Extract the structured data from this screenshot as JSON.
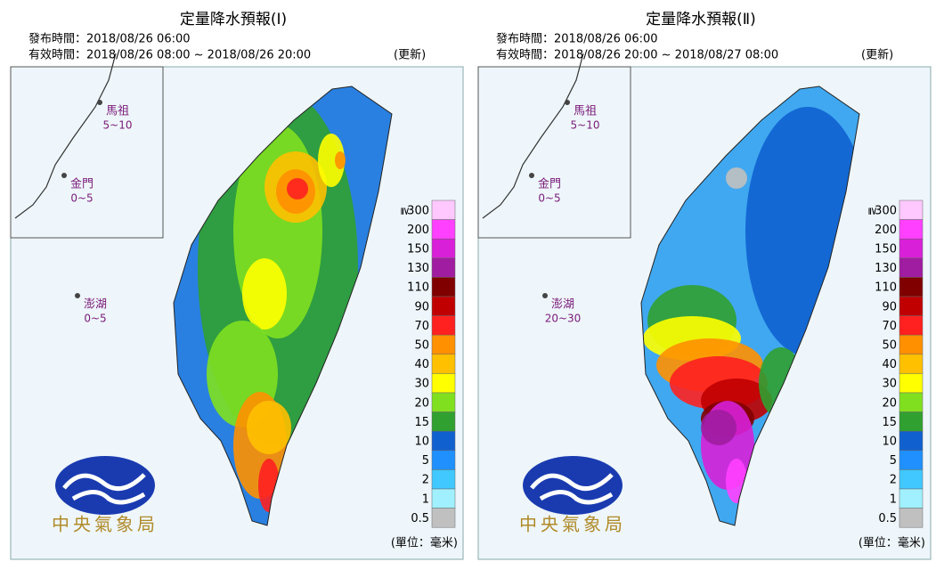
{
  "panels": [
    {
      "title": "定量降水預報(Ⅰ)",
      "issued": "發布時間：2018/08/26 06:00",
      "valid": "有效時間：2018/08/26 08:00 ~ 2018/08/26 20:00",
      "update": "(更新)",
      "islands": [
        {
          "name": "馬祖",
          "range": "5~10"
        },
        {
          "name": "金門",
          "range": "0~5"
        },
        {
          "name": "澎湖",
          "range": "0~5"
        }
      ],
      "legend_prefix": "≧",
      "legend": [
        {
          "label": "300",
          "color": "#ffc8ff"
        },
        {
          "label": "200",
          "color": "#ff40ff"
        },
        {
          "label": "150",
          "color": "#d820d8"
        },
        {
          "label": "130",
          "color": "#a01ca0"
        },
        {
          "label": "110",
          "color": "#800000"
        },
        {
          "label": "90",
          "color": "#c00000"
        },
        {
          "label": "70",
          "color": "#ff2020"
        },
        {
          "label": "50",
          "color": "#ff9000"
        },
        {
          "label": "40",
          "color": "#ffc000"
        },
        {
          "label": "30",
          "color": "#ffff00"
        },
        {
          "label": "20",
          "color": "#80e020"
        },
        {
          "label": "15",
          "color": "#30a030"
        },
        {
          "label": "10",
          "color": "#1060d0"
        },
        {
          "label": "5",
          "color": "#2090ff"
        },
        {
          "label": "2",
          "color": "#40c8ff"
        },
        {
          "label": "1",
          "color": "#a0f0ff"
        },
        {
          "label": "0.5",
          "color": "#c0c0c0"
        }
      ],
      "unit": "(單位：毫米)",
      "agency": "中央氣象局"
    },
    {
      "title": "定量降水預報(Ⅱ)",
      "issued": "發布時間：2018/08/26 06:00",
      "valid": "有效時間：2018/08/26 20:00 ~ 2018/08/27 08:00",
      "update": "(更新)",
      "islands": [
        {
          "name": "馬祖",
          "range": "5~10"
        },
        {
          "name": "金門",
          "range": "0~5"
        },
        {
          "name": "澎湖",
          "range": "20~30"
        }
      ],
      "legend_prefix": "≧",
      "legend": [
        {
          "label": "300",
          "color": "#ffc8ff"
        },
        {
          "label": "200",
          "color": "#ff40ff"
        },
        {
          "label": "150",
          "color": "#d820d8"
        },
        {
          "label": "130",
          "color": "#a01ca0"
        },
        {
          "label": "110",
          "color": "#800000"
        },
        {
          "label": "90",
          "color": "#c00000"
        },
        {
          "label": "70",
          "color": "#ff2020"
        },
        {
          "label": "50",
          "color": "#ff9000"
        },
        {
          "label": "40",
          "color": "#ffc000"
        },
        {
          "label": "30",
          "color": "#ffff00"
        },
        {
          "label": "20",
          "color": "#80e020"
        },
        {
          "label": "15",
          "color": "#30a030"
        },
        {
          "label": "10",
          "color": "#1060d0"
        },
        {
          "label": "5",
          "color": "#2090ff"
        },
        {
          "label": "2",
          "color": "#40c8ff"
        },
        {
          "label": "1",
          "color": "#a0f0ff"
        },
        {
          "label": "0.5",
          "color": "#c0c0c0"
        }
      ],
      "unit": "(單位：毫米)",
      "agency": "中央氣象局"
    }
  ]
}
